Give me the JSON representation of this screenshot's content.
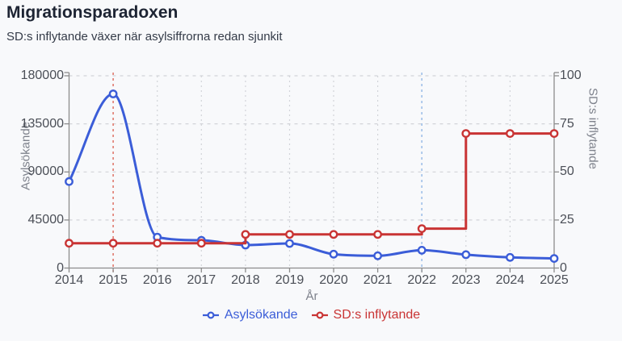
{
  "header": {
    "title": "Migrationsparadoxen",
    "subtitle": "SD:s inflytande växer när asylsiffrorna redan sjunkit"
  },
  "chart_data": {
    "type": "line",
    "x": [
      2014,
      2015,
      2016,
      2017,
      2018,
      2019,
      2020,
      2021,
      2022,
      2023,
      2024,
      2025
    ],
    "xlabel": "År",
    "axes": {
      "left": {
        "label": "Asylsökande",
        "ticks": [
          0,
          45000,
          90000,
          135000,
          180000
        ],
        "range": [
          0,
          180000
        ]
      },
      "right": {
        "label": "SD:s inflytande",
        "ticks": [
          0,
          25,
          50,
          75,
          100
        ],
        "range": [
          0,
          100
        ]
      }
    },
    "series": [
      {
        "name": "Asylsökande",
        "axis": "left",
        "color": "#3b5dd8",
        "shape": "smooth",
        "values": [
          81000,
          163000,
          29000,
          26000,
          21500,
          23000,
          13000,
          11500,
          16700,
          12500,
          10000,
          9000
        ]
      },
      {
        "name": "SD:s inflytande",
        "axis": "right",
        "color": "#c93434",
        "shape": "step-after",
        "values": [
          12.9,
          12.9,
          12.9,
          12.9,
          17.5,
          17.5,
          17.5,
          17.5,
          20.5,
          70,
          70,
          70
        ]
      }
    ],
    "annotations": {
      "vlines": [
        {
          "x": 2015,
          "color": "#e07a6e"
        },
        {
          "x": 2022,
          "color": "#9fc0e8"
        }
      ]
    },
    "grid": true,
    "legend_position": "bottom"
  },
  "theme": {
    "background": "#f8f9fb",
    "grid_color": "#d2d4d9",
    "axis_color": "#8c8c8c",
    "marker_fill": "#fafbfc"
  }
}
